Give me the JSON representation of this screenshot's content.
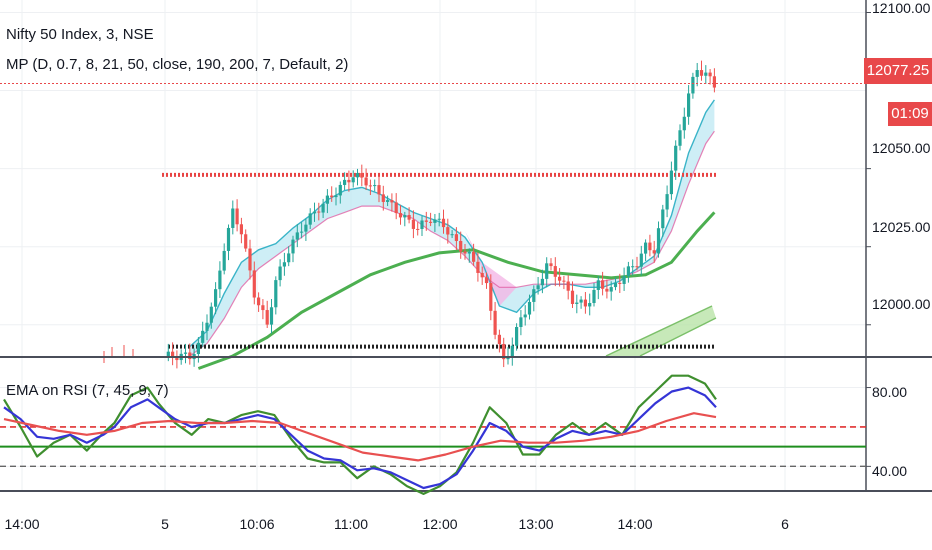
{
  "chart_data": [
    {
      "type": "candlestick",
      "title": "Nifty 50 Index, 3, NSE",
      "indicator": "MP (D, 0.7, 8, 21, 50, close, 190, 200, 7, Default, 2)",
      "last_price": "12077.25",
      "countdown": "01:09",
      "y_ticks": [
        "12100.00",
        "12050.00",
        "12025.00",
        "12000.00"
      ],
      "x_ticks": [
        "14:00",
        "5",
        "10:06",
        "11:00",
        "12:00",
        "13:00",
        "14:00",
        "6"
      ],
      "ylim": [
        11990,
        12104
      ],
      "resistance_level": 12048,
      "support_level": 11993,
      "close_path": [
        [
          0,
          11990
        ],
        [
          6,
          11990
        ],
        [
          8,
          11993
        ],
        [
          10,
          12002
        ],
        [
          12,
          12010
        ],
        [
          14,
          12025
        ],
        [
          16,
          12036
        ],
        [
          18,
          12030
        ],
        [
          21,
          12010
        ],
        [
          24,
          12000
        ],
        [
          26,
          12014
        ],
        [
          29,
          12024
        ],
        [
          32,
          12031
        ],
        [
          35,
          12036
        ],
        [
          38,
          12040
        ],
        [
          41,
          12044
        ],
        [
          44,
          12048
        ],
        [
          47,
          12046
        ],
        [
          50,
          12042
        ],
        [
          53,
          12038
        ],
        [
          56,
          12034
        ],
        [
          59,
          12031
        ],
        [
          62,
          12034
        ],
        [
          65,
          12032
        ],
        [
          68,
          12026
        ],
        [
          71,
          12022
        ],
        [
          73,
          12018
        ],
        [
          75,
          12012
        ],
        [
          77,
          11998
        ],
        [
          79,
          11988
        ],
        [
          81,
          11994
        ],
        [
          83,
          12002
        ],
        [
          86,
          12010
        ],
        [
          89,
          12019
        ],
        [
          92,
          12015
        ],
        [
          95,
          12008
        ],
        [
          98,
          12006
        ],
        [
          101,
          12013
        ],
        [
          104,
          12011
        ],
        [
          107,
          12016
        ],
        [
          110,
          12020
        ],
        [
          112,
          12025
        ],
        [
          114,
          12024
        ],
        [
          116,
          12036
        ],
        [
          118,
          12050
        ],
        [
          120,
          12062
        ],
        [
          122,
          12074
        ],
        [
          124,
          12082
        ],
        [
          126,
          12080
        ],
        [
          128,
          12077
        ]
      ],
      "ema_band_fast": [
        [
          6,
          11993
        ],
        [
          10,
          11998
        ],
        [
          14,
          12010
        ],
        [
          18,
          12020
        ],
        [
          22,
          12024
        ],
        [
          26,
          12026
        ],
        [
          30,
          12031
        ],
        [
          34,
          12035
        ],
        [
          38,
          12040
        ],
        [
          42,
          12043
        ],
        [
          46,
          12044
        ],
        [
          50,
          12042
        ],
        [
          54,
          12039
        ],
        [
          58,
          12036
        ],
        [
          62,
          12034
        ],
        [
          66,
          12032
        ],
        [
          70,
          12028
        ],
        [
          74,
          12020
        ],
        [
          78,
          12006
        ],
        [
          82,
          12004
        ],
        [
          86,
          12010
        ],
        [
          90,
          12013
        ],
        [
          94,
          12013
        ],
        [
          98,
          12012
        ],
        [
          102,
          12012
        ],
        [
          106,
          12014
        ],
        [
          110,
          12018
        ],
        [
          114,
          12022
        ],
        [
          118,
          12035
        ],
        [
          122,
          12055
        ],
        [
          126,
          12068
        ],
        [
          128,
          12072
        ]
      ],
      "ema_band_slow": [
        [
          6,
          11990
        ],
        [
          10,
          11994
        ],
        [
          14,
          12002
        ],
        [
          18,
          12012
        ],
        [
          22,
          12018
        ],
        [
          26,
          12022
        ],
        [
          30,
          12026
        ],
        [
          34,
          12030
        ],
        [
          38,
          12034
        ],
        [
          42,
          12036
        ],
        [
          46,
          12038
        ],
        [
          50,
          12038
        ],
        [
          54,
          12036
        ],
        [
          58,
          12034
        ],
        [
          62,
          12030
        ],
        [
          66,
          12027
        ],
        [
          70,
          12022
        ],
        [
          74,
          12016
        ],
        [
          78,
          12012
        ],
        [
          82,
          12012
        ],
        [
          86,
          12013
        ],
        [
          90,
          12013
        ],
        [
          94,
          12013
        ],
        [
          98,
          12013
        ],
        [
          102,
          12014
        ],
        [
          106,
          12015
        ],
        [
          110,
          12017
        ],
        [
          114,
          12020
        ],
        [
          118,
          12030
        ],
        [
          122,
          12045
        ],
        [
          126,
          12058
        ],
        [
          128,
          12062
        ]
      ],
      "sma_green": [
        [
          8,
          11986
        ],
        [
          16,
          11990
        ],
        [
          24,
          11996
        ],
        [
          32,
          12004
        ],
        [
          40,
          12010
        ],
        [
          48,
          12016
        ],
        [
          56,
          12020
        ],
        [
          64,
          12023
        ],
        [
          72,
          12024
        ],
        [
          80,
          12020
        ],
        [
          88,
          12017
        ],
        [
          96,
          12016
        ],
        [
          104,
          12015
        ],
        [
          112,
          12016
        ],
        [
          118,
          12020
        ],
        [
          124,
          12030
        ],
        [
          128,
          12036
        ]
      ]
    },
    {
      "type": "line",
      "title": "EMA on RSI (7, 45, 9, 7)",
      "y_ticks": [
        "80.00",
        "40.00"
      ],
      "ylim": [
        28,
        95
      ],
      "levels": {
        "upper": 60,
        "middle": 50,
        "lower": 40
      },
      "series": [
        {
          "color": "#3f8f2f",
          "values": [
            [
              0,
              74
            ],
            [
              3,
              60
            ],
            [
              6,
              45
            ],
            [
              9,
              52
            ],
            [
              12,
              56
            ],
            [
              15,
              48
            ],
            [
              18,
              57
            ],
            [
              20,
              62
            ],
            [
              23,
              76
            ],
            [
              26,
              80
            ],
            [
              28,
              72
            ],
            [
              31,
              62
            ],
            [
              34,
              56
            ],
            [
              37,
              64
            ],
            [
              40,
              62
            ],
            [
              43,
              66
            ],
            [
              46,
              68
            ],
            [
              49,
              66
            ],
            [
              52,
              54
            ],
            [
              55,
              44
            ],
            [
              58,
              42
            ],
            [
              61,
              42
            ],
            [
              64,
              34
            ],
            [
              67,
              40
            ],
            [
              70,
              36
            ],
            [
              73,
              30
            ],
            [
              76,
              26
            ],
            [
              79,
              30
            ],
            [
              82,
              37
            ],
            [
              85,
              52
            ],
            [
              88,
              70
            ],
            [
              91,
              62
            ],
            [
              94,
              46
            ],
            [
              97,
              46
            ],
            [
              100,
              56
            ],
            [
              103,
              62
            ],
            [
              106,
              56
            ],
            [
              109,
              62
            ],
            [
              112,
              56
            ],
            [
              115,
              70
            ],
            [
              118,
              78
            ],
            [
              121,
              86
            ],
            [
              124,
              86
            ],
            [
              127,
              82
            ],
            [
              129,
              74
            ]
          ]
        },
        {
          "color": "#3535d6",
          "values": [
            [
              0,
              70
            ],
            [
              3,
              64
            ],
            [
              6,
              55
            ],
            [
              9,
              54
            ],
            [
              12,
              56
            ],
            [
              15,
              52
            ],
            [
              18,
              56
            ],
            [
              20,
              60
            ],
            [
              23,
              70
            ],
            [
              26,
              74
            ],
            [
              28,
              70
            ],
            [
              31,
              64
            ],
            [
              34,
              60
            ],
            [
              37,
              62
            ],
            [
              40,
              62
            ],
            [
              43,
              64
            ],
            [
              46,
              66
            ],
            [
              49,
              64
            ],
            [
              52,
              56
            ],
            [
              55,
              48
            ],
            [
              58,
              44
            ],
            [
              61,
              43
            ],
            [
              64,
              38
            ],
            [
              67,
              39
            ],
            [
              70,
              37
            ],
            [
              73,
              33
            ],
            [
              76,
              29
            ],
            [
              79,
              31
            ],
            [
              82,
              36
            ],
            [
              85,
              48
            ],
            [
              88,
              62
            ],
            [
              91,
              58
            ],
            [
              94,
              50
            ],
            [
              97,
              48
            ],
            [
              100,
              54
            ],
            [
              103,
              58
            ],
            [
              106,
              56
            ],
            [
              109,
              58
            ],
            [
              112,
              56
            ],
            [
              115,
              64
            ],
            [
              118,
              72
            ],
            [
              121,
              78
            ],
            [
              124,
              80
            ],
            [
              127,
              76
            ],
            [
              129,
              70
            ]
          ]
        },
        {
          "color": "#e85050",
          "values": [
            [
              0,
              64
            ],
            [
              5,
              61
            ],
            [
              10,
              58
            ],
            [
              15,
              56
            ],
            [
              20,
              58
            ],
            [
              25,
              62
            ],
            [
              30,
              63
            ],
            [
              35,
              62
            ],
            [
              40,
              62
            ],
            [
              45,
              63
            ],
            [
              50,
              62
            ],
            [
              55,
              57
            ],
            [
              60,
              52
            ],
            [
              65,
              47
            ],
            [
              70,
              45
            ],
            [
              75,
              43
            ],
            [
              80,
              46
            ],
            [
              85,
              50
            ],
            [
              90,
              53
            ],
            [
              95,
              52
            ],
            [
              100,
              52
            ],
            [
              105,
              53
            ],
            [
              110,
              55
            ],
            [
              115,
              58
            ],
            [
              120,
              63
            ],
            [
              125,
              67
            ],
            [
              129,
              65
            ]
          ]
        }
      ]
    }
  ]
}
